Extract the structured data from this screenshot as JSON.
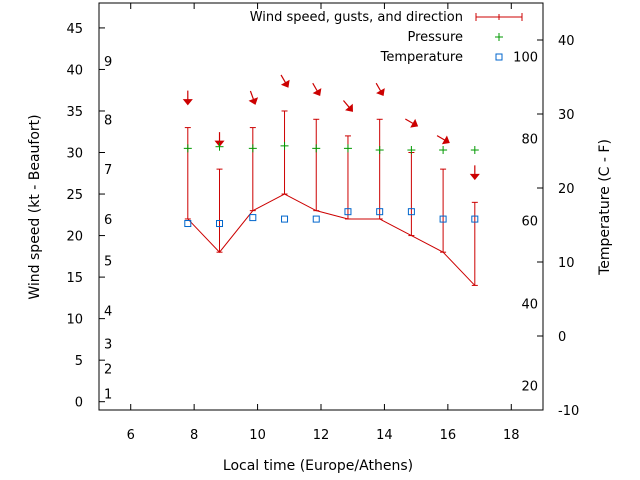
{
  "chart_data": {
    "type": "line",
    "xlabel": "Local time (Europe/Athens)",
    "ylabel": "Wind speed (kt - Beaufort)",
    "y2label": "Temperature (C - F)",
    "xlim": [
      5,
      19
    ],
    "xticks": [
      6,
      8,
      10,
      12,
      14,
      16,
      18
    ],
    "ylim": [
      -1,
      48
    ],
    "yticks": [
      0,
      5,
      10,
      15,
      20,
      25,
      30,
      35,
      40,
      45
    ],
    "y2lim": [
      -10,
      45
    ],
    "y2ticks": [
      -10,
      0,
      10,
      20,
      30,
      40
    ],
    "beaufort_scale": [
      {
        "label": "1",
        "kt": 1
      },
      {
        "label": "2",
        "kt": 4
      },
      {
        "label": "3",
        "kt": 7
      },
      {
        "label": "4",
        "kt": 11
      },
      {
        "label": "5",
        "kt": 17
      },
      {
        "label": "6",
        "kt": 22
      },
      {
        "label": "7",
        "kt": 28
      },
      {
        "label": "8",
        "kt": 34
      },
      {
        "label": "9",
        "kt": 41
      }
    ],
    "fahrenheit_scale": [
      {
        "label": "20",
        "celsius": -6.7
      },
      {
        "label": "40",
        "celsius": 4.4
      },
      {
        "label": "60",
        "celsius": 15.6
      },
      {
        "label": "80",
        "celsius": 26.7
      },
      {
        "label": "100",
        "celsius": 37.8
      }
    ],
    "legend": {
      "position": "top-right",
      "wind_label": "Wind speed, gusts, and direction",
      "pressure_label": "Pressure",
      "temperature_label": "Temperature"
    },
    "colors": {
      "wind": "#cc0000",
      "pressure": "#009900",
      "temperature": "#0066cc"
    },
    "x": [
      7.8,
      8.8,
      9.85,
      10.85,
      11.85,
      12.85,
      13.85,
      14.85,
      15.85,
      16.85
    ],
    "wind_speed": [
      22,
      18,
      23,
      25,
      23,
      22,
      22,
      20,
      18,
      14
    ],
    "wind_gust": [
      33,
      28,
      33,
      35,
      34,
      32,
      34,
      30,
      28,
      24
    ],
    "wind_direction_deg": [
      0,
      0,
      340,
      330,
      330,
      320,
      330,
      300,
      300,
      0
    ],
    "pressure_kt": [
      30.5,
      30.7,
      30.5,
      30.8,
      30.5,
      30.5,
      30.3,
      30.3,
      30.3,
      30.3
    ],
    "temperature_c": [
      15.2,
      15.2,
      16,
      15.8,
      15.8,
      16.8,
      16.8,
      16.8,
      15.8,
      15.8
    ]
  }
}
